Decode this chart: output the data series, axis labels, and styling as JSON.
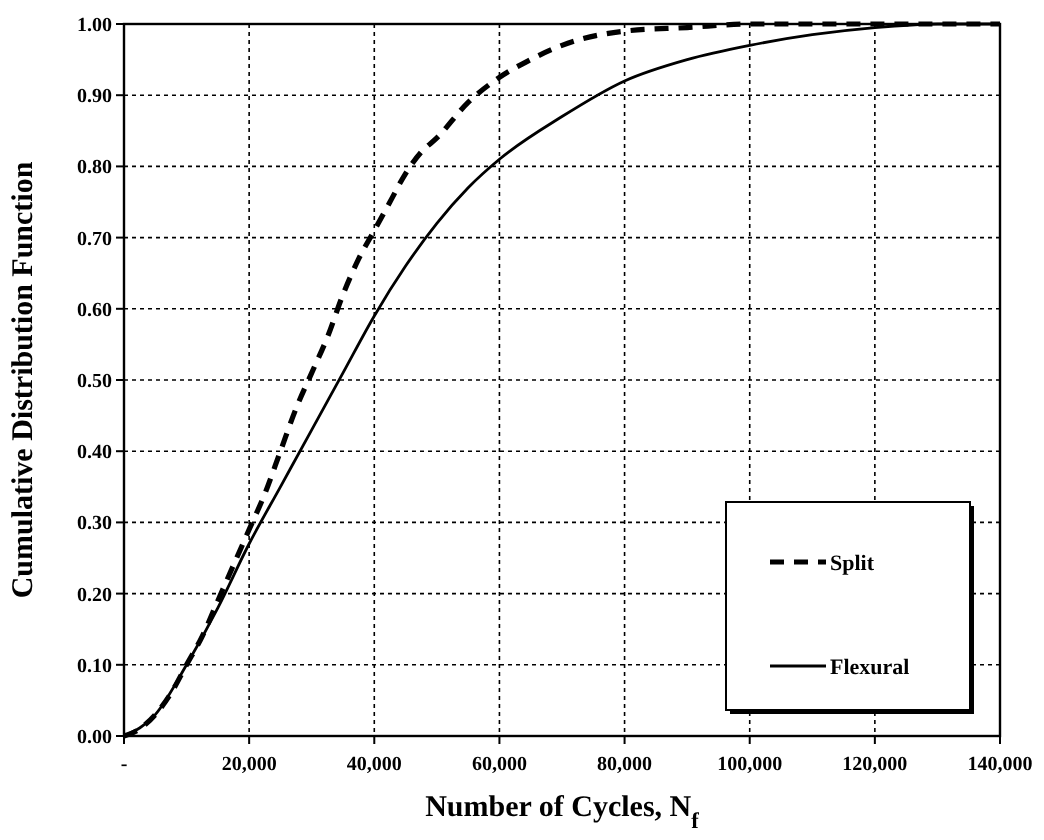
{
  "chart_data": {
    "type": "line",
    "xlabel": "Number of Cycles, N$_{f}$",
    "ylabel": "Cumulative Distribution Function",
    "xlim": [
      0,
      140000
    ],
    "ylim": [
      0,
      1
    ],
    "xticks": [
      {
        "value": 0,
        "label": "-"
      },
      {
        "value": 20000,
        "label": "20,000"
      },
      {
        "value": 40000,
        "label": "40,000"
      },
      {
        "value": 60000,
        "label": "60,000"
      },
      {
        "value": 80000,
        "label": "80,000"
      },
      {
        "value": 100000,
        "label": "100,000"
      },
      {
        "value": 120000,
        "label": "120,000"
      },
      {
        "value": 140000,
        "label": "140,000"
      }
    ],
    "yticks": [
      {
        "value": 0,
        "label": "0.00"
      },
      {
        "value": 0.1,
        "label": "0.10"
      },
      {
        "value": 0.2,
        "label": "0.20"
      },
      {
        "value": 0.3,
        "label": "0.30"
      },
      {
        "value": 0.4,
        "label": "0.40"
      },
      {
        "value": 0.5,
        "label": "0.50"
      },
      {
        "value": 0.6,
        "label": "0.60"
      },
      {
        "value": 0.7,
        "label": "0.70"
      },
      {
        "value": 0.8,
        "label": "0.80"
      },
      {
        "value": 0.9,
        "label": "0.90"
      },
      {
        "value": 1,
        "label": "1.00"
      }
    ],
    "grid": true,
    "legend": "bottom right",
    "marker": "none",
    "series": [
      {
        "name": "Split",
        "color": "#000000",
        "line_style": "dashed",
        "x": [
          0,
          2500,
          5000,
          7500,
          10000,
          12500,
          15000,
          17500,
          20000,
          22500,
          25000,
          27500,
          30000,
          32500,
          35000,
          37500,
          40000,
          42500,
          45000,
          47500,
          50000,
          55000,
          60000,
          65000,
          70000,
          80000,
          90000,
          100000,
          140000
        ],
        "values": [
          0,
          0.01,
          0.03,
          0.06,
          0.1,
          0.14,
          0.19,
          0.24,
          0.29,
          0.34,
          0.4,
          0.46,
          0.51,
          0.56,
          0.62,
          0.67,
          0.71,
          0.75,
          0.79,
          0.82,
          0.84,
          0.89,
          0.925,
          0.95,
          0.97,
          0.99,
          0.995,
          1,
          1
        ]
      },
      {
        "name": "Flexural",
        "color": "#000000",
        "line_style": "solid",
        "x": [
          0,
          5000,
          10000,
          15000,
          20000,
          25000,
          30000,
          35000,
          40000,
          45000,
          50000,
          55000,
          60000,
          70000,
          80000,
          90000,
          100000,
          110000,
          120000,
          130000,
          140000
        ],
        "values": [
          0,
          0.03,
          0.1,
          0.18,
          0.27,
          0.35,
          0.43,
          0.51,
          0.59,
          0.66,
          0.72,
          0.77,
          0.81,
          0.87,
          0.92,
          0.95,
          0.97,
          0.985,
          0.995,
          1,
          1
        ]
      }
    ]
  }
}
